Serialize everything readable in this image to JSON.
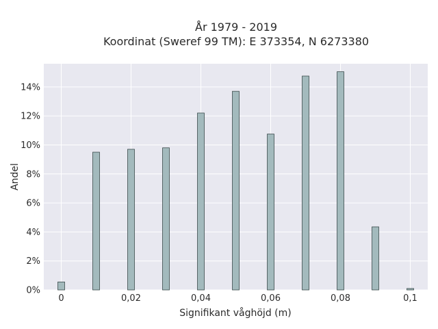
{
  "chart_data": {
    "type": "bar",
    "title_line1": "År 1979 - 2019",
    "title_line2": "Koordinat (Sweref 99 TM): E 373354, N 6273380",
    "xlabel": "Signifikant våghöjd (m)",
    "ylabel": "Andel",
    "x": [
      0,
      0.01,
      0.02,
      0.03,
      0.04,
      0.05,
      0.06,
      0.07,
      0.08,
      0.09,
      0.1
    ],
    "values": [
      0.55,
      9.5,
      9.7,
      9.8,
      12.2,
      13.7,
      10.75,
      14.75,
      15.05,
      4.35,
      0.1
    ],
    "xlim": [
      -0.005,
      0.105
    ],
    "ylim": [
      0,
      15.6
    ],
    "xticks": [
      {
        "value": 0,
        "label": "0"
      },
      {
        "value": 0.02,
        "label": "0,02"
      },
      {
        "value": 0.04,
        "label": "0,04"
      },
      {
        "value": 0.06,
        "label": "0,06"
      },
      {
        "value": 0.08,
        "label": "0,08"
      },
      {
        "value": 0.1,
        "label": "0,1"
      }
    ],
    "yticks": [
      {
        "value": 0,
        "label": "0%"
      },
      {
        "value": 2,
        "label": "2%"
      },
      {
        "value": 4,
        "label": "4%"
      },
      {
        "value": 6,
        "label": "6%"
      },
      {
        "value": 8,
        "label": "8%"
      },
      {
        "value": 10,
        "label": "10%"
      },
      {
        "value": 12,
        "label": "12%"
      },
      {
        "value": 14,
        "label": "14%"
      }
    ],
    "grid": true,
    "bar_color": "#a3babd",
    "bar_edge_color": "#3a4a4a",
    "plot_background": "#e8e8f0"
  }
}
